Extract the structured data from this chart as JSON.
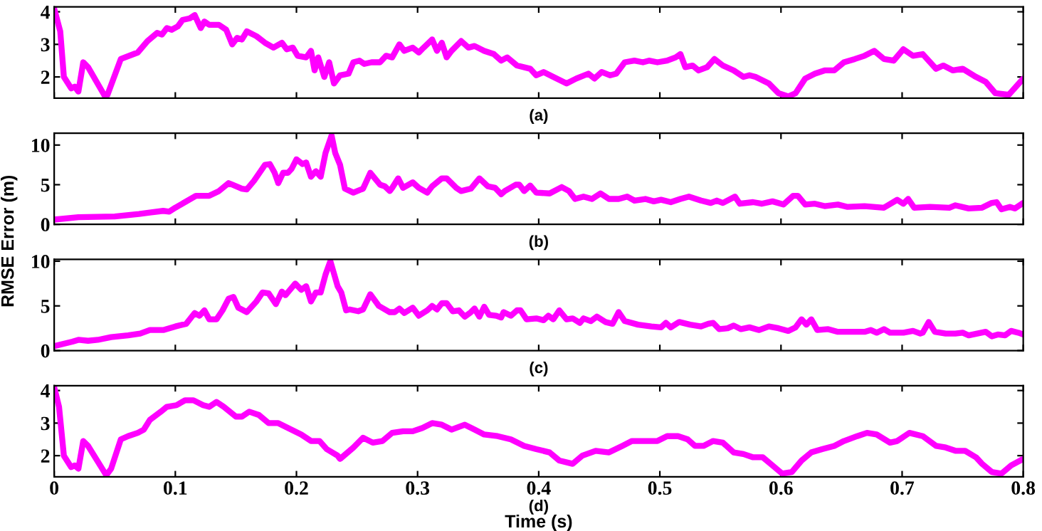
{
  "chart_data": [
    {
      "type": "line",
      "annotations": [
        "(a)"
      ],
      "xlim": [
        0,
        0.8
      ],
      "ylim": [
        1.35,
        4.15
      ],
      "xticks": [
        0,
        0.1,
        0.2,
        0.3,
        0.4,
        0.5,
        0.6,
        0.7,
        0.8
      ],
      "yticks": [
        2,
        3,
        4
      ],
      "tick_labels": "y",
      "grid": false,
      "legend": false,
      "line_style": "solid",
      "marker": "none",
      "series": [
        {
          "color": "#ff00ff",
          "x": [
            0,
            0.005,
            0.008,
            0.014,
            0.017,
            0.02,
            0.024,
            0.028,
            0.042,
            0.044,
            0.055,
            0.069,
            0.077,
            0.085,
            0.089,
            0.093,
            0.097,
            0.102,
            0.106,
            0.112,
            0.116,
            0.121,
            0.124,
            0.128,
            0.136,
            0.142,
            0.147,
            0.151,
            0.155,
            0.159,
            0.167,
            0.174,
            0.181,
            0.188,
            0.192,
            0.197,
            0.201,
            0.208,
            0.212,
            0.215,
            0.218,
            0.223,
            0.227,
            0.231,
            0.236,
            0.243,
            0.247,
            0.252,
            0.256,
            0.262,
            0.269,
            0.274,
            0.279,
            0.285,
            0.289,
            0.296,
            0.301,
            0.305,
            0.312,
            0.316,
            0.32,
            0.324,
            0.328,
            0.336,
            0.342,
            0.347,
            0.355,
            0.363,
            0.369,
            0.374,
            0.382,
            0.393,
            0.398,
            0.404,
            0.412,
            0.423,
            0.431,
            0.441,
            0.446,
            0.452,
            0.459,
            0.464,
            0.471,
            0.479,
            0.486,
            0.491,
            0.498,
            0.506,
            0.513,
            0.517,
            0.521,
            0.527,
            0.532,
            0.539,
            0.545,
            0.552,
            0.561,
            0.569,
            0.574,
            0.579,
            0.59,
            0.598,
            0.606,
            0.612,
            0.62,
            0.628,
            0.636,
            0.644,
            0.652,
            0.661,
            0.669,
            0.677,
            0.685,
            0.693,
            0.701,
            0.709,
            0.717,
            0.728,
            0.734,
            0.742,
            0.75,
            0.761,
            0.769,
            0.777,
            0.788,
            0.8
          ],
          "values": [
            4.1,
            3.4,
            2.0,
            1.65,
            1.7,
            1.55,
            2.45,
            2.3,
            1.4,
            1.45,
            2.55,
            2.75,
            3.1,
            3.35,
            3.3,
            3.5,
            3.45,
            3.55,
            3.75,
            3.8,
            3.9,
            3.5,
            3.7,
            3.6,
            3.6,
            3.45,
            3.0,
            3.2,
            3.15,
            3.4,
            3.25,
            3.05,
            2.9,
            3.05,
            2.85,
            2.9,
            2.65,
            2.6,
            2.8,
            2.2,
            2.6,
            2.0,
            2.45,
            1.8,
            2.05,
            2.1,
            2.45,
            2.5,
            2.4,
            2.45,
            2.45,
            2.65,
            2.6,
            3.0,
            2.8,
            2.9,
            2.75,
            2.9,
            3.15,
            2.8,
            3.05,
            2.6,
            2.8,
            3.1,
            2.9,
            2.95,
            2.8,
            2.7,
            2.5,
            2.6,
            2.35,
            2.25,
            2.05,
            2.15,
            2.0,
            1.8,
            1.95,
            2.1,
            1.95,
            2.15,
            2.05,
            2.1,
            2.45,
            2.5,
            2.45,
            2.5,
            2.45,
            2.5,
            2.6,
            2.7,
            2.3,
            2.35,
            2.2,
            2.3,
            2.55,
            2.35,
            2.2,
            2.0,
            2.05,
            2.0,
            1.8,
            1.5,
            1.4,
            1.5,
            1.95,
            2.1,
            2.2,
            2.2,
            2.45,
            2.55,
            2.65,
            2.8,
            2.55,
            2.5,
            2.85,
            2.65,
            2.7,
            2.25,
            2.35,
            2.2,
            2.25,
            2.0,
            1.85,
            1.5,
            1.45,
            1.95
          ]
        }
      ]
    },
    {
      "type": "line",
      "annotations": [
        "(b)"
      ],
      "xlim": [
        0,
        0.8
      ],
      "ylim": [
        0,
        11.5
      ],
      "xticks": [
        0,
        0.1,
        0.2,
        0.3,
        0.4,
        0.5,
        0.6,
        0.7,
        0.8
      ],
      "yticks": [
        0,
        5,
        10
      ],
      "tick_labels": "y",
      "grid": false,
      "legend": false,
      "line_style": "solid",
      "marker": "none",
      "series": [
        {
          "color": "#ff00ff",
          "x": [
            0,
            0.02,
            0.05,
            0.07,
            0.08,
            0.09,
            0.095,
            0.1,
            0.117,
            0.128,
            0.136,
            0.144,
            0.155,
            0.159,
            0.165,
            0.174,
            0.178,
            0.182,
            0.185,
            0.189,
            0.193,
            0.196,
            0.2,
            0.205,
            0.208,
            0.212,
            0.216,
            0.22,
            0.224,
            0.229,
            0.232,
            0.236,
            0.24,
            0.247,
            0.255,
            0.261,
            0.269,
            0.273,
            0.277,
            0.279,
            0.284,
            0.288,
            0.296,
            0.301,
            0.308,
            0.312,
            0.32,
            0.324,
            0.332,
            0.336,
            0.344,
            0.351,
            0.358,
            0.364,
            0.369,
            0.372,
            0.381,
            0.384,
            0.388,
            0.393,
            0.398,
            0.409,
            0.419,
            0.425,
            0.43,
            0.437,
            0.444,
            0.451,
            0.458,
            0.466,
            0.473,
            0.479,
            0.488,
            0.495,
            0.501,
            0.509,
            0.517,
            0.524,
            0.534,
            0.542,
            0.547,
            0.552,
            0.562,
            0.566,
            0.577,
            0.584,
            0.593,
            0.602,
            0.61,
            0.614,
            0.62,
            0.628,
            0.636,
            0.647,
            0.655,
            0.669,
            0.685,
            0.696,
            0.701,
            0.705,
            0.71,
            0.723,
            0.739,
            0.744,
            0.755,
            0.766,
            0.774,
            0.778,
            0.782,
            0.789,
            0.793,
            0.8
          ],
          "values": [
            0.6,
            0.9,
            1.0,
            1.3,
            1.5,
            1.7,
            1.6,
            2.1,
            3.6,
            3.6,
            4.2,
            5.2,
            4.5,
            4.4,
            5.5,
            7.5,
            7.6,
            6.5,
            5.2,
            6.5,
            6.5,
            7.0,
            8.2,
            7.6,
            7.8,
            6.0,
            6.7,
            6.0,
            9.0,
            11.2,
            9.0,
            7.5,
            4.5,
            4.0,
            4.5,
            6.5,
            5.0,
            4.8,
            4.2,
            4.6,
            5.8,
            4.6,
            5.3,
            4.6,
            4.0,
            4.8,
            5.8,
            5.8,
            4.6,
            4.2,
            4.5,
            5.8,
            4.8,
            4.6,
            3.8,
            4.2,
            5.0,
            5.0,
            4.2,
            4.9,
            4.0,
            3.9,
            4.7,
            4.2,
            3.2,
            3.5,
            3.2,
            3.9,
            3.2,
            3.2,
            3.5,
            3.0,
            3.2,
            2.9,
            3.1,
            2.8,
            3.2,
            3.5,
            3.0,
            2.7,
            3.0,
            2.7,
            3.5,
            2.6,
            2.8,
            2.6,
            2.9,
            2.5,
            3.6,
            3.6,
            2.5,
            2.6,
            2.3,
            2.5,
            2.2,
            2.3,
            2.1,
            3.1,
            2.6,
            3.2,
            2.1,
            2.2,
            2.1,
            2.4,
            2.0,
            2.1,
            2.7,
            2.8,
            1.9,
            2.2,
            2.0,
            2.7
          ]
        }
      ]
    },
    {
      "type": "line",
      "annotations": [
        "(c)"
      ],
      "ylabel": "RMSE Error (m)",
      "xlim": [
        0,
        0.8
      ],
      "ylim": [
        0,
        10.2
      ],
      "xticks": [
        0,
        0.1,
        0.2,
        0.3,
        0.4,
        0.5,
        0.6,
        0.7,
        0.8
      ],
      "yticks": [
        0,
        5,
        10
      ],
      "tick_labels": "y",
      "grid": false,
      "legend": false,
      "line_style": "solid",
      "marker": "none",
      "series": [
        {
          "color": "#ff00ff",
          "x": [
            0,
            0.015,
            0.02,
            0.028,
            0.036,
            0.047,
            0.061,
            0.071,
            0.079,
            0.09,
            0.1,
            0.109,
            0.116,
            0.12,
            0.124,
            0.128,
            0.134,
            0.139,
            0.144,
            0.148,
            0.152,
            0.159,
            0.167,
            0.172,
            0.177,
            0.183,
            0.188,
            0.191,
            0.199,
            0.204,
            0.208,
            0.212,
            0.216,
            0.22,
            0.224,
            0.228,
            0.234,
            0.237,
            0.241,
            0.244,
            0.251,
            0.255,
            0.261,
            0.268,
            0.277,
            0.281,
            0.285,
            0.289,
            0.296,
            0.301,
            0.308,
            0.312,
            0.316,
            0.32,
            0.324,
            0.329,
            0.334,
            0.339,
            0.344,
            0.347,
            0.351,
            0.355,
            0.359,
            0.365,
            0.369,
            0.371,
            0.377,
            0.382,
            0.385,
            0.39,
            0.398,
            0.404,
            0.408,
            0.412,
            0.417,
            0.423,
            0.428,
            0.434,
            0.437,
            0.443,
            0.448,
            0.455,
            0.461,
            0.466,
            0.471,
            0.482,
            0.493,
            0.501,
            0.505,
            0.509,
            0.516,
            0.525,
            0.534,
            0.54,
            0.544,
            0.549,
            0.556,
            0.561,
            0.567,
            0.574,
            0.582,
            0.59,
            0.598,
            0.606,
            0.612,
            0.617,
            0.621,
            0.625,
            0.63,
            0.639,
            0.647,
            0.661,
            0.669,
            0.674,
            0.679,
            0.685,
            0.69,
            0.701,
            0.709,
            0.715,
            0.717,
            0.722,
            0.727,
            0.736,
            0.744,
            0.75,
            0.755,
            0.769,
            0.774,
            0.779,
            0.785,
            0.79,
            0.796,
            0.8
          ],
          "values": [
            0.5,
            1.0,
            1.2,
            1.1,
            1.2,
            1.5,
            1.7,
            1.9,
            2.3,
            2.3,
            2.7,
            3.0,
            4.2,
            3.9,
            4.5,
            3.5,
            3.5,
            4.5,
            5.8,
            6.0,
            4.8,
            4.3,
            5.5,
            6.5,
            6.4,
            5.2,
            6.6,
            6.2,
            7.5,
            6.8,
            7.2,
            5.5,
            6.5,
            6.5,
            8.5,
            10.0,
            7.2,
            6.5,
            4.5,
            4.6,
            4.4,
            4.6,
            6.3,
            5.0,
            4.3,
            4.3,
            4.7,
            4.2,
            4.8,
            3.9,
            4.5,
            5.0,
            4.6,
            5.3,
            5.3,
            4.4,
            4.5,
            3.8,
            4.3,
            4.7,
            3.8,
            4.9,
            4.0,
            3.9,
            3.7,
            4.3,
            3.9,
            4.5,
            4.5,
            3.5,
            3.6,
            3.4,
            3.9,
            3.5,
            4.5,
            3.5,
            3.6,
            3.1,
            3.6,
            3.3,
            3.8,
            3.2,
            3.0,
            4.3,
            3.3,
            2.9,
            2.7,
            2.6,
            3.1,
            2.6,
            3.2,
            2.9,
            2.7,
            3.0,
            3.1,
            2.4,
            2.5,
            2.8,
            2.4,
            2.6,
            2.3,
            2.7,
            2.5,
            2.2,
            2.6,
            3.5,
            2.9,
            3.5,
            2.3,
            2.4,
            2.1,
            2.1,
            2.1,
            2.3,
            2.0,
            2.4,
            2.0,
            2.0,
            2.2,
            1.9,
            2.0,
            3.2,
            2.1,
            1.9,
            1.9,
            2.0,
            1.7,
            2.1,
            1.6,
            1.8,
            1.7,
            2.2,
            2.0,
            1.8
          ]
        }
      ]
    },
    {
      "type": "line",
      "annotations": [
        "(d)"
      ],
      "xlabel": "Time (s)",
      "xlim": [
        0,
        0.8
      ],
      "ylim": [
        1.35,
        4.15
      ],
      "xticks": [
        0,
        0.1,
        0.2,
        0.3,
        0.4,
        0.5,
        0.6,
        0.7,
        0.8
      ],
      "yticks": [
        2,
        3,
        4
      ],
      "grid": false,
      "legend": false,
      "line_style": "solid",
      "marker": "none",
      "series": [
        {
          "color": "#ff00ff",
          "x": [
            0,
            0.004,
            0.008,
            0.014,
            0.017,
            0.02,
            0.024,
            0.028,
            0.043,
            0.047,
            0.055,
            0.061,
            0.069,
            0.074,
            0.079,
            0.088,
            0.093,
            0.101,
            0.108,
            0.115,
            0.123,
            0.128,
            0.134,
            0.14,
            0.15,
            0.155,
            0.161,
            0.169,
            0.177,
            0.185,
            0.193,
            0.204,
            0.212,
            0.219,
            0.225,
            0.234,
            0.236,
            0.247,
            0.255,
            0.263,
            0.271,
            0.279,
            0.288,
            0.296,
            0.304,
            0.312,
            0.32,
            0.328,
            0.339,
            0.347,
            0.355,
            0.366,
            0.377,
            0.388,
            0.398,
            0.409,
            0.417,
            0.428,
            0.436,
            0.447,
            0.458,
            0.469,
            0.477,
            0.488,
            0.498,
            0.506,
            0.515,
            0.523,
            0.529,
            0.536,
            0.544,
            0.552,
            0.561,
            0.569,
            0.577,
            0.585,
            0.593,
            0.601,
            0.609,
            0.617,
            0.625,
            0.634,
            0.644,
            0.652,
            0.663,
            0.671,
            0.679,
            0.69,
            0.696,
            0.706,
            0.717,
            0.728,
            0.736,
            0.744,
            0.752,
            0.761,
            0.766,
            0.774,
            0.782,
            0.79,
            0.8
          ],
          "values": [
            4.1,
            3.5,
            2.0,
            1.65,
            1.7,
            1.6,
            2.45,
            2.3,
            1.4,
            1.6,
            2.5,
            2.6,
            2.7,
            2.8,
            3.1,
            3.35,
            3.5,
            3.55,
            3.7,
            3.7,
            3.55,
            3.5,
            3.65,
            3.5,
            3.2,
            3.2,
            3.35,
            3.25,
            3.0,
            3.0,
            2.85,
            2.65,
            2.45,
            2.45,
            2.2,
            2.0,
            1.9,
            2.25,
            2.55,
            2.4,
            2.45,
            2.7,
            2.75,
            2.75,
            2.85,
            3.0,
            2.95,
            2.8,
            2.95,
            2.8,
            2.65,
            2.6,
            2.5,
            2.3,
            2.2,
            2.1,
            1.85,
            1.75,
            2.0,
            2.15,
            2.1,
            2.3,
            2.45,
            2.45,
            2.45,
            2.6,
            2.6,
            2.5,
            2.3,
            2.3,
            2.45,
            2.4,
            2.1,
            2.05,
            1.95,
            1.95,
            1.7,
            1.45,
            1.5,
            1.85,
            2.1,
            2.2,
            2.3,
            2.45,
            2.6,
            2.7,
            2.65,
            2.4,
            2.45,
            2.7,
            2.6,
            2.3,
            2.25,
            2.15,
            2.15,
            1.95,
            1.75,
            1.5,
            1.45,
            1.7,
            1.9
          ]
        }
      ]
    }
  ]
}
